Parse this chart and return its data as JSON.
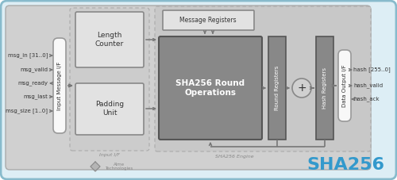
{
  "bg_outer_fc": "#ddeef5",
  "bg_outer_ec": "#88bbcc",
  "bg_inner_fc": "#d0d0d0",
  "bg_inner_ec": "#aaaaaa",
  "bg_engine_fc": "#c8c8c8",
  "bg_engine_ec": "#aaaaaa",
  "bg_dashed_fc": "#c8c8c8",
  "bg_dashed_ec": "#aaaaaa",
  "box_light_fc": "#e2e2e2",
  "box_light_ec": "#888888",
  "box_dark_fc": "#888888",
  "box_dark_ec": "#555555",
  "box_reg_fc": "#888888",
  "box_reg_ec": "#555555",
  "white_box_fc": "#f8f8f8",
  "white_box_ec": "#999999",
  "arrow_color": "#777777",
  "text_dark": "#333333",
  "text_gray": "#888888",
  "text_white": "#ffffff",
  "text_sha256": "#3399cc",
  "input_signals": [
    "msg_in [31..0]",
    "msg_valid",
    "msg_ready",
    "msg_last",
    "msg_size [1..0]"
  ],
  "input_right": [
    true,
    true,
    false,
    true,
    true
  ],
  "output_signals": [
    "hash [255..0]",
    "hash_valid",
    "hash_ack"
  ],
  "output_right": [
    true,
    true,
    false
  ],
  "if_input_label": "Input Message I/F",
  "if_output_label": "Data Output I/F",
  "len_counter_label": "Length\nCounter",
  "padding_label": "Padding\nUnit",
  "msg_reg_label": "Message Registers",
  "sha_round_label": "SHA256 Round\nOperations",
  "round_reg_label": "Round Registers",
  "hash_reg_label": "Hash Registers",
  "input_if_sublabel": "Input I/F",
  "engine_sublabel": "SHA256 Engine",
  "main_title": "SHA256",
  "logo_text": "Alme\nTechnologies"
}
